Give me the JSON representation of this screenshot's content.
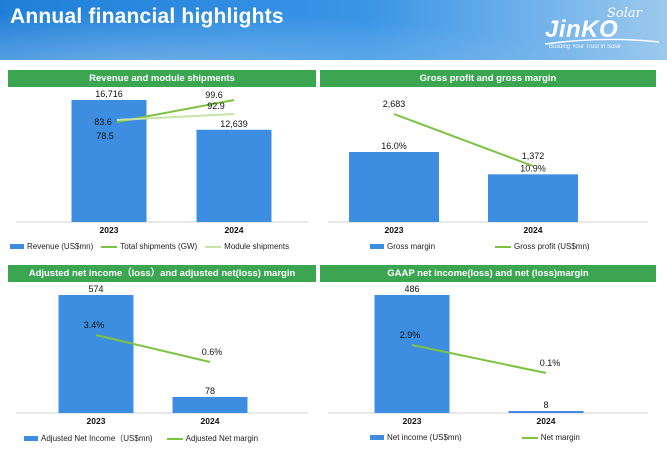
{
  "header": {
    "title": "Annual financial highlights",
    "logo_brand": "JinKO",
    "logo_sub": "Solar",
    "logo_slogan": "Building Your Trust in Solar"
  },
  "colors": {
    "bar": "#3d8ee0",
    "line_green": "#7dc342",
    "line_light_green": "#c6e3a8",
    "title_band": "#3ba552"
  },
  "chart_data": [
    {
      "type": "bar",
      "title": "Revenue and module shipments",
      "categories": [
        "2023",
        "2024"
      ],
      "series": [
        {
          "name": "Revenue (US$mn)",
          "kind": "bar",
          "values": [
            16716,
            12639
          ],
          "labels": [
            "16,716",
            "12,639"
          ]
        },
        {
          "name": "Total shipments (GW)",
          "kind": "line",
          "values": [
            83.6,
            99.6
          ],
          "labels": [
            "83.6",
            "99.6"
          ]
        },
        {
          "name": "Module shipments",
          "kind": "line",
          "values": [
            78.5,
            92.9
          ],
          "labels": [
            "78.5",
            "92.9"
          ]
        }
      ]
    },
    {
      "type": "bar",
      "title": "Gross profit and gross margin",
      "categories": [
        "2023",
        "2024"
      ],
      "series": [
        {
          "name": "Gross margin",
          "kind": "bar",
          "values": [
            16.0,
            10.9
          ],
          "labels": [
            "16.0%",
            "10.9%"
          ]
        },
        {
          "name": "Gross profit (US$mn)",
          "kind": "line",
          "values": [
            2683,
            1372
          ],
          "labels": [
            "2,683",
            "1,372"
          ]
        }
      ]
    },
    {
      "type": "bar",
      "title": "Adjusted net income（loss）and adjusted net(loss) margin",
      "categories": [
        "2023",
        "2024"
      ],
      "series": [
        {
          "name": "Adjusted Net Income（US$mn)",
          "kind": "bar",
          "values": [
            574,
            78
          ],
          "labels": [
            "574",
            "78"
          ]
        },
        {
          "name": "Adjusted Net margin",
          "kind": "line",
          "values": [
            3.4,
            0.6
          ],
          "labels": [
            "3.4%",
            "0.6%"
          ]
        }
      ]
    },
    {
      "type": "bar",
      "title": "GAAP net income(loss) and net (loss)margin",
      "categories": [
        "2023",
        "2024"
      ],
      "series": [
        {
          "name": "Net income (US$mn)",
          "kind": "bar",
          "values": [
            486,
            8
          ],
          "labels": [
            "486",
            "8"
          ]
        },
        {
          "name": "Net margin",
          "kind": "line",
          "values": [
            2.9,
            0.1
          ],
          "labels": [
            "2.9%",
            "0.1%"
          ]
        }
      ]
    }
  ]
}
